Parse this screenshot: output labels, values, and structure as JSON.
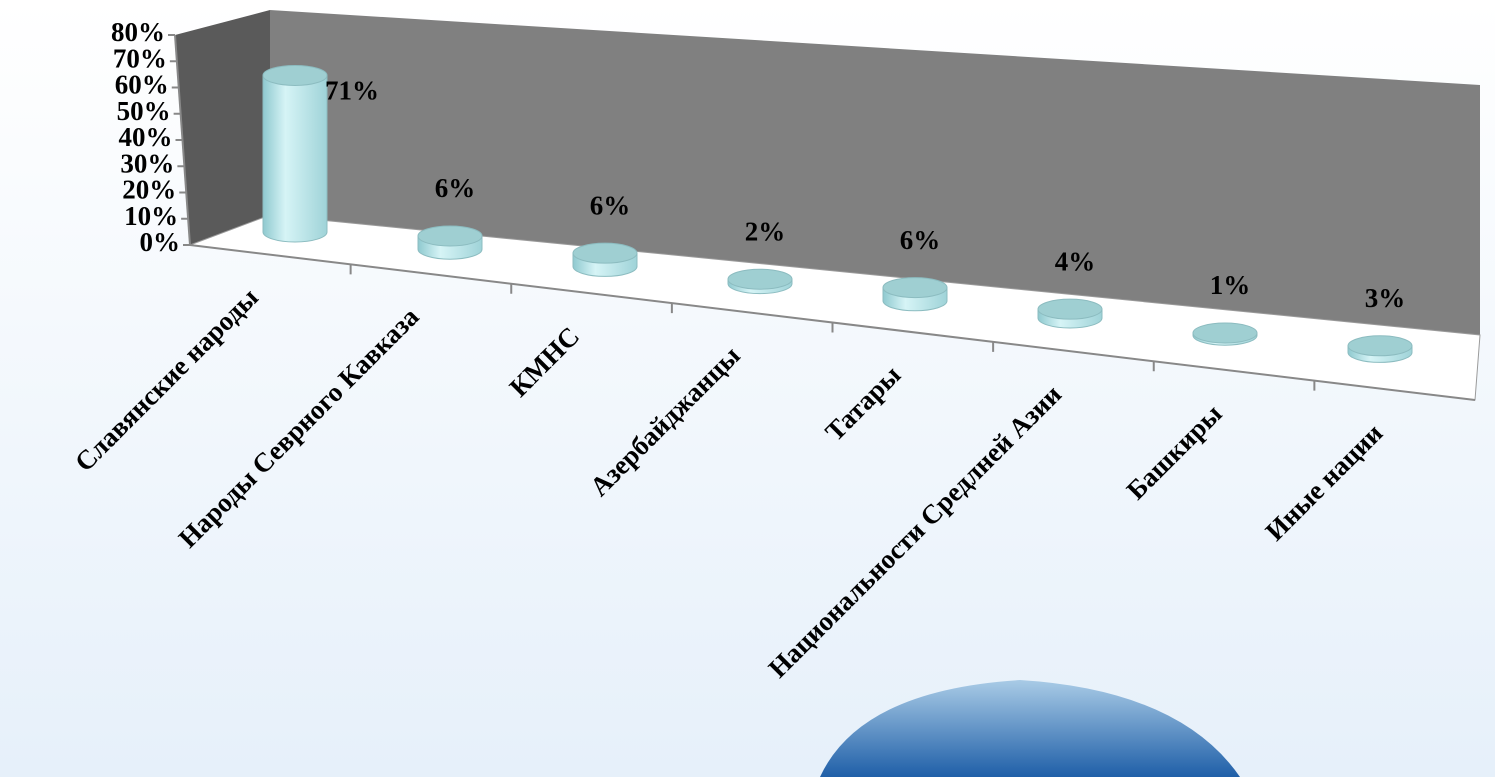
{
  "chart_data": {
    "type": "bar3d",
    "categories": [
      "Славянские народы",
      "Народы  Севрного Кавказа",
      "КМНС",
      "Азербайджанцы",
      "Татары",
      "Национальности Средлней Азии",
      "Башкиры",
      "Иные нации"
    ],
    "values": [
      71,
      6,
      6,
      2,
      6,
      4,
      1,
      3
    ],
    "value_labels": [
      "71%",
      "6%",
      "6%",
      "2%",
      "6%",
      "4%",
      "1%",
      "3%"
    ],
    "color": "#b4e4e8",
    "ylim": [
      0,
      80
    ],
    "yticks": [
      {
        "value": 0,
        "label": "0%"
      },
      {
        "value": 10,
        "label": "10%"
      },
      {
        "value": 20,
        "label": "20%"
      },
      {
        "value": 30,
        "label": "30%"
      },
      {
        "value": 40,
        "label": "40%"
      },
      {
        "value": 50,
        "label": "50%"
      },
      {
        "value": 60,
        "label": "60%"
      },
      {
        "value": 70,
        "label": "70%"
      },
      {
        "value": 80,
        "label": "80%"
      }
    ]
  }
}
